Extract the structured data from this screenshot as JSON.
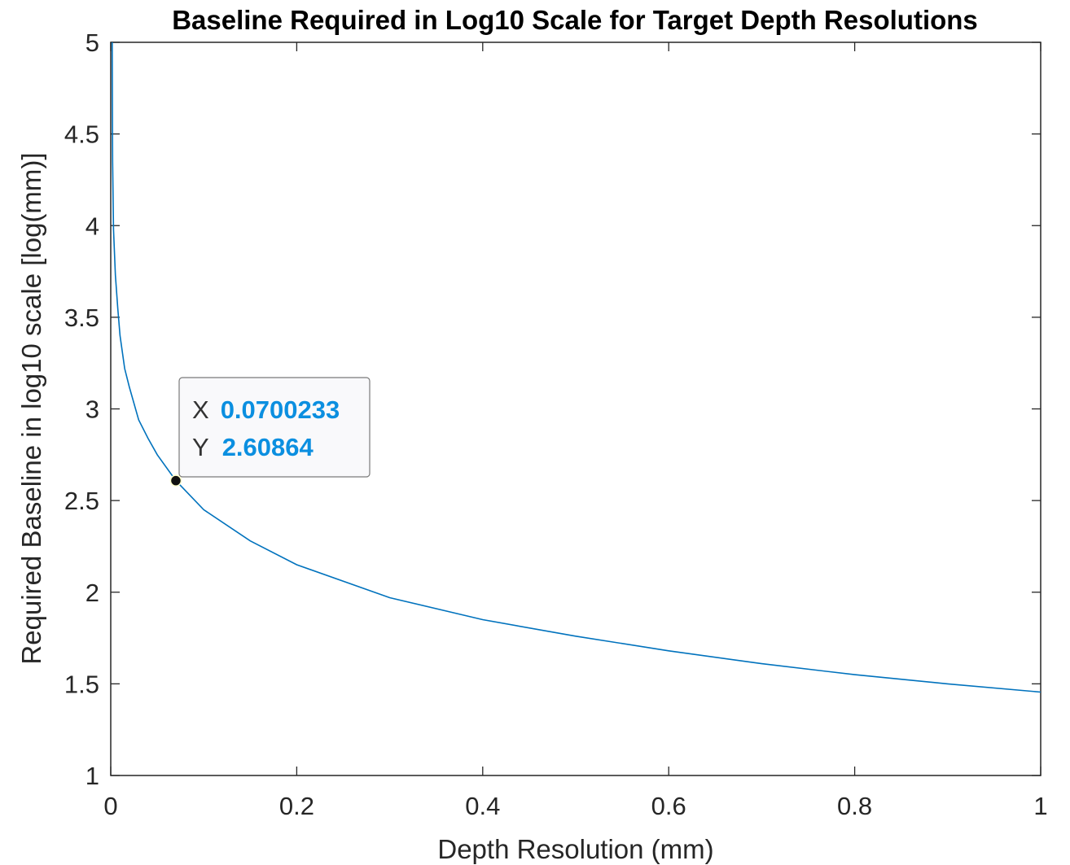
{
  "chart_data": {
    "type": "line",
    "title": "Baseline Required in Log10 Scale for Target Depth Resolutions",
    "xlabel": "Depth Resolution (mm)",
    "ylabel": "Required Baseline in log10 scale [log(mm)]",
    "xlim": [
      0,
      1
    ],
    "ylim": [
      1,
      5
    ],
    "x_ticks": [
      "0",
      "0.2",
      "0.4",
      "0.6",
      "0.8",
      "1"
    ],
    "y_ticks": [
      "1",
      "1.5",
      "2",
      "2.5",
      "3",
      "3.5",
      "4",
      "4.5",
      "5"
    ],
    "grid": false,
    "series": [
      {
        "color": "#0072bd",
        "x": [
          0.0016,
          0.002,
          0.003,
          0.005,
          0.0075,
          0.01,
          0.015,
          0.02,
          0.03,
          0.04,
          0.05,
          0.0700233,
          0.1,
          0.15,
          0.2,
          0.3,
          0.4,
          0.5,
          0.6,
          0.7,
          0.8,
          0.9,
          1.0
        ],
        "y": [
          5.0,
          4.35,
          3.98,
          3.73,
          3.55,
          3.4,
          3.22,
          3.12,
          2.94,
          2.84,
          2.75,
          2.60864,
          2.45,
          2.28,
          2.15,
          1.97,
          1.85,
          1.76,
          1.68,
          1.61,
          1.55,
          1.5,
          1.455
        ]
      }
    ],
    "datatip": {
      "x_key": "X",
      "y_key": "Y",
      "x_value": "0.0700233",
      "y_value": "2.60864",
      "x": 0.0700233,
      "y": 2.60864
    }
  }
}
